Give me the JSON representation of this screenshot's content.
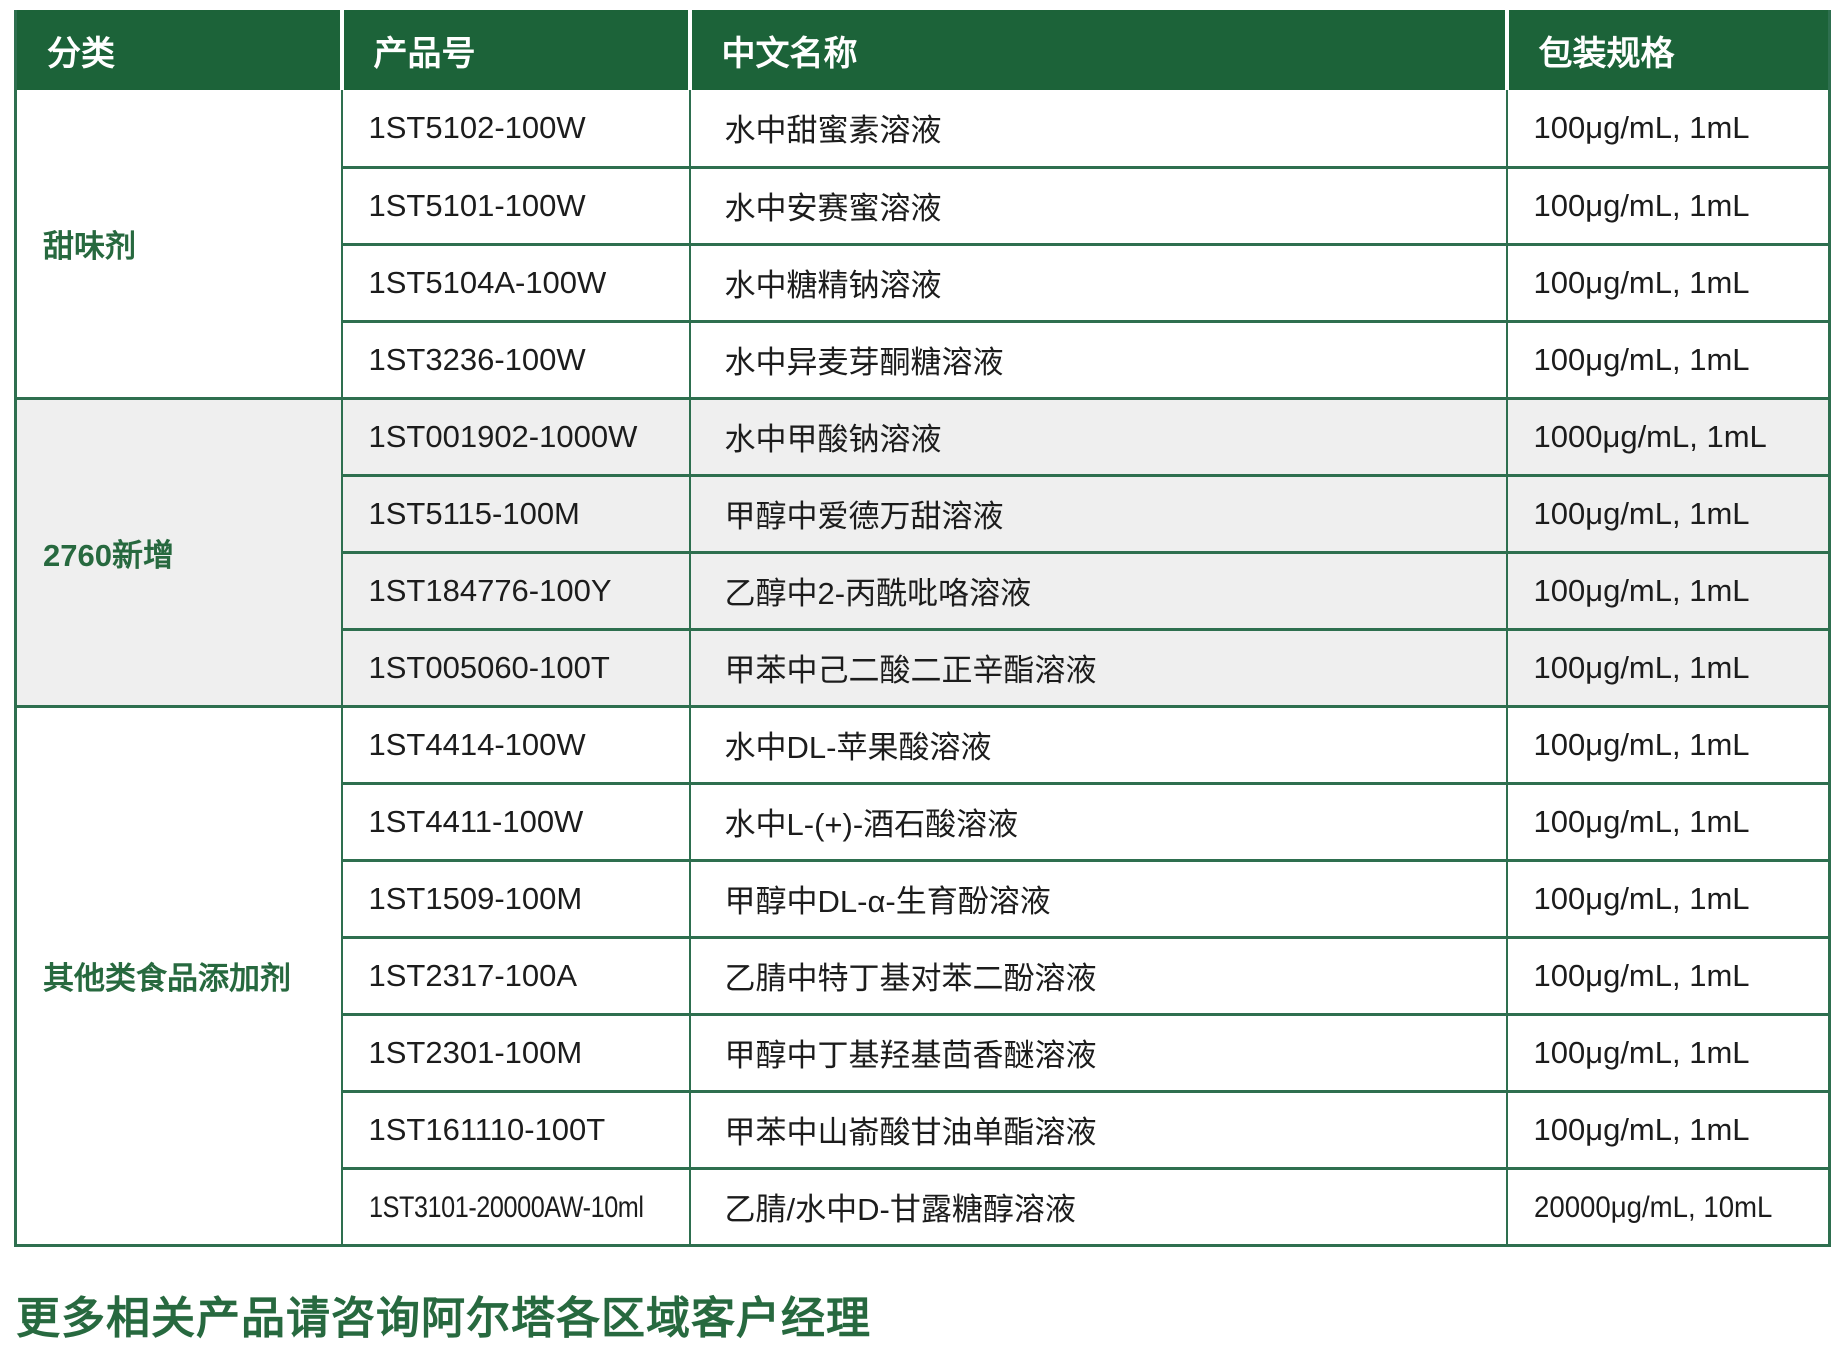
{
  "colors": {
    "header_bg": "#1c6339",
    "border_green": "#2e6f4f",
    "category_green": "#27693f",
    "alt_row_bg": "#efefef",
    "body_text": "#1c1c1c"
  },
  "table": {
    "columns": [
      "分类",
      "产品号",
      "中文名称",
      "包装规格"
    ],
    "sections": [
      {
        "category": "甜味剂",
        "rows": [
          {
            "code": "1ST5102-100W",
            "name": "水中甜蜜素溶液",
            "spec": "100μg/mL, 1mL"
          },
          {
            "code": "1ST5101-100W",
            "name": "水中安赛蜜溶液",
            "spec": "100μg/mL, 1mL"
          },
          {
            "code": "1ST5104A-100W",
            "name": "水中糖精钠溶液",
            "spec": "100μg/mL, 1mL"
          },
          {
            "code": "1ST3236-100W",
            "name": "水中异麦芽酮糖溶液",
            "spec": "100μg/mL, 1mL"
          }
        ]
      },
      {
        "category": "2760新增",
        "rows": [
          {
            "code": "1ST001902-1000W",
            "name": "水中甲酸钠溶液",
            "spec": "1000μg/mL, 1mL"
          },
          {
            "code": "1ST5115-100M",
            "name": "甲醇中爱德万甜溶液",
            "spec": "100μg/mL, 1mL"
          },
          {
            "code": "1ST184776-100Y",
            "name": "乙醇中2-丙酰吡咯溶液",
            "spec": "100μg/mL, 1mL"
          },
          {
            "code": "1ST005060-100T",
            "name": "甲苯中己二酸二正辛酯溶液",
            "spec": "100μg/mL, 1mL"
          }
        ]
      },
      {
        "category": "其他类食品添加剂",
        "rows": [
          {
            "code": "1ST4414-100W",
            "name": "水中DL-苹果酸溶液",
            "spec": "100μg/mL, 1mL"
          },
          {
            "code": "1ST4411-100W",
            "name": "水中L-(+)-酒石酸溶液",
            "spec": "100μg/mL, 1mL"
          },
          {
            "code": "1ST1509-100M",
            "name": "甲醇中DL-α-生育酚溶液",
            "spec": "100μg/mL, 1mL"
          },
          {
            "code": "1ST2317-100A",
            "name": "乙腈中特丁基对苯二酚溶液",
            "spec": "100μg/mL, 1mL"
          },
          {
            "code": "1ST2301-100M",
            "name": "甲醇中丁基羟基茴香醚溶液",
            "spec": "100μg/mL, 1mL"
          },
          {
            "code": "1ST161110-100T",
            "name": "甲苯中山嵛酸甘油单酯溶液",
            "spec": "100μg/mL, 1mL"
          },
          {
            "code": "1ST3101-20000AW-10ml",
            "name": "乙腈/水中D-甘露糖醇溶液",
            "spec": "20000μg/mL, 10mL"
          }
        ]
      }
    ]
  },
  "footer": {
    "note": "更多相关产品请咨询阿尔塔各区域客户经理"
  }
}
